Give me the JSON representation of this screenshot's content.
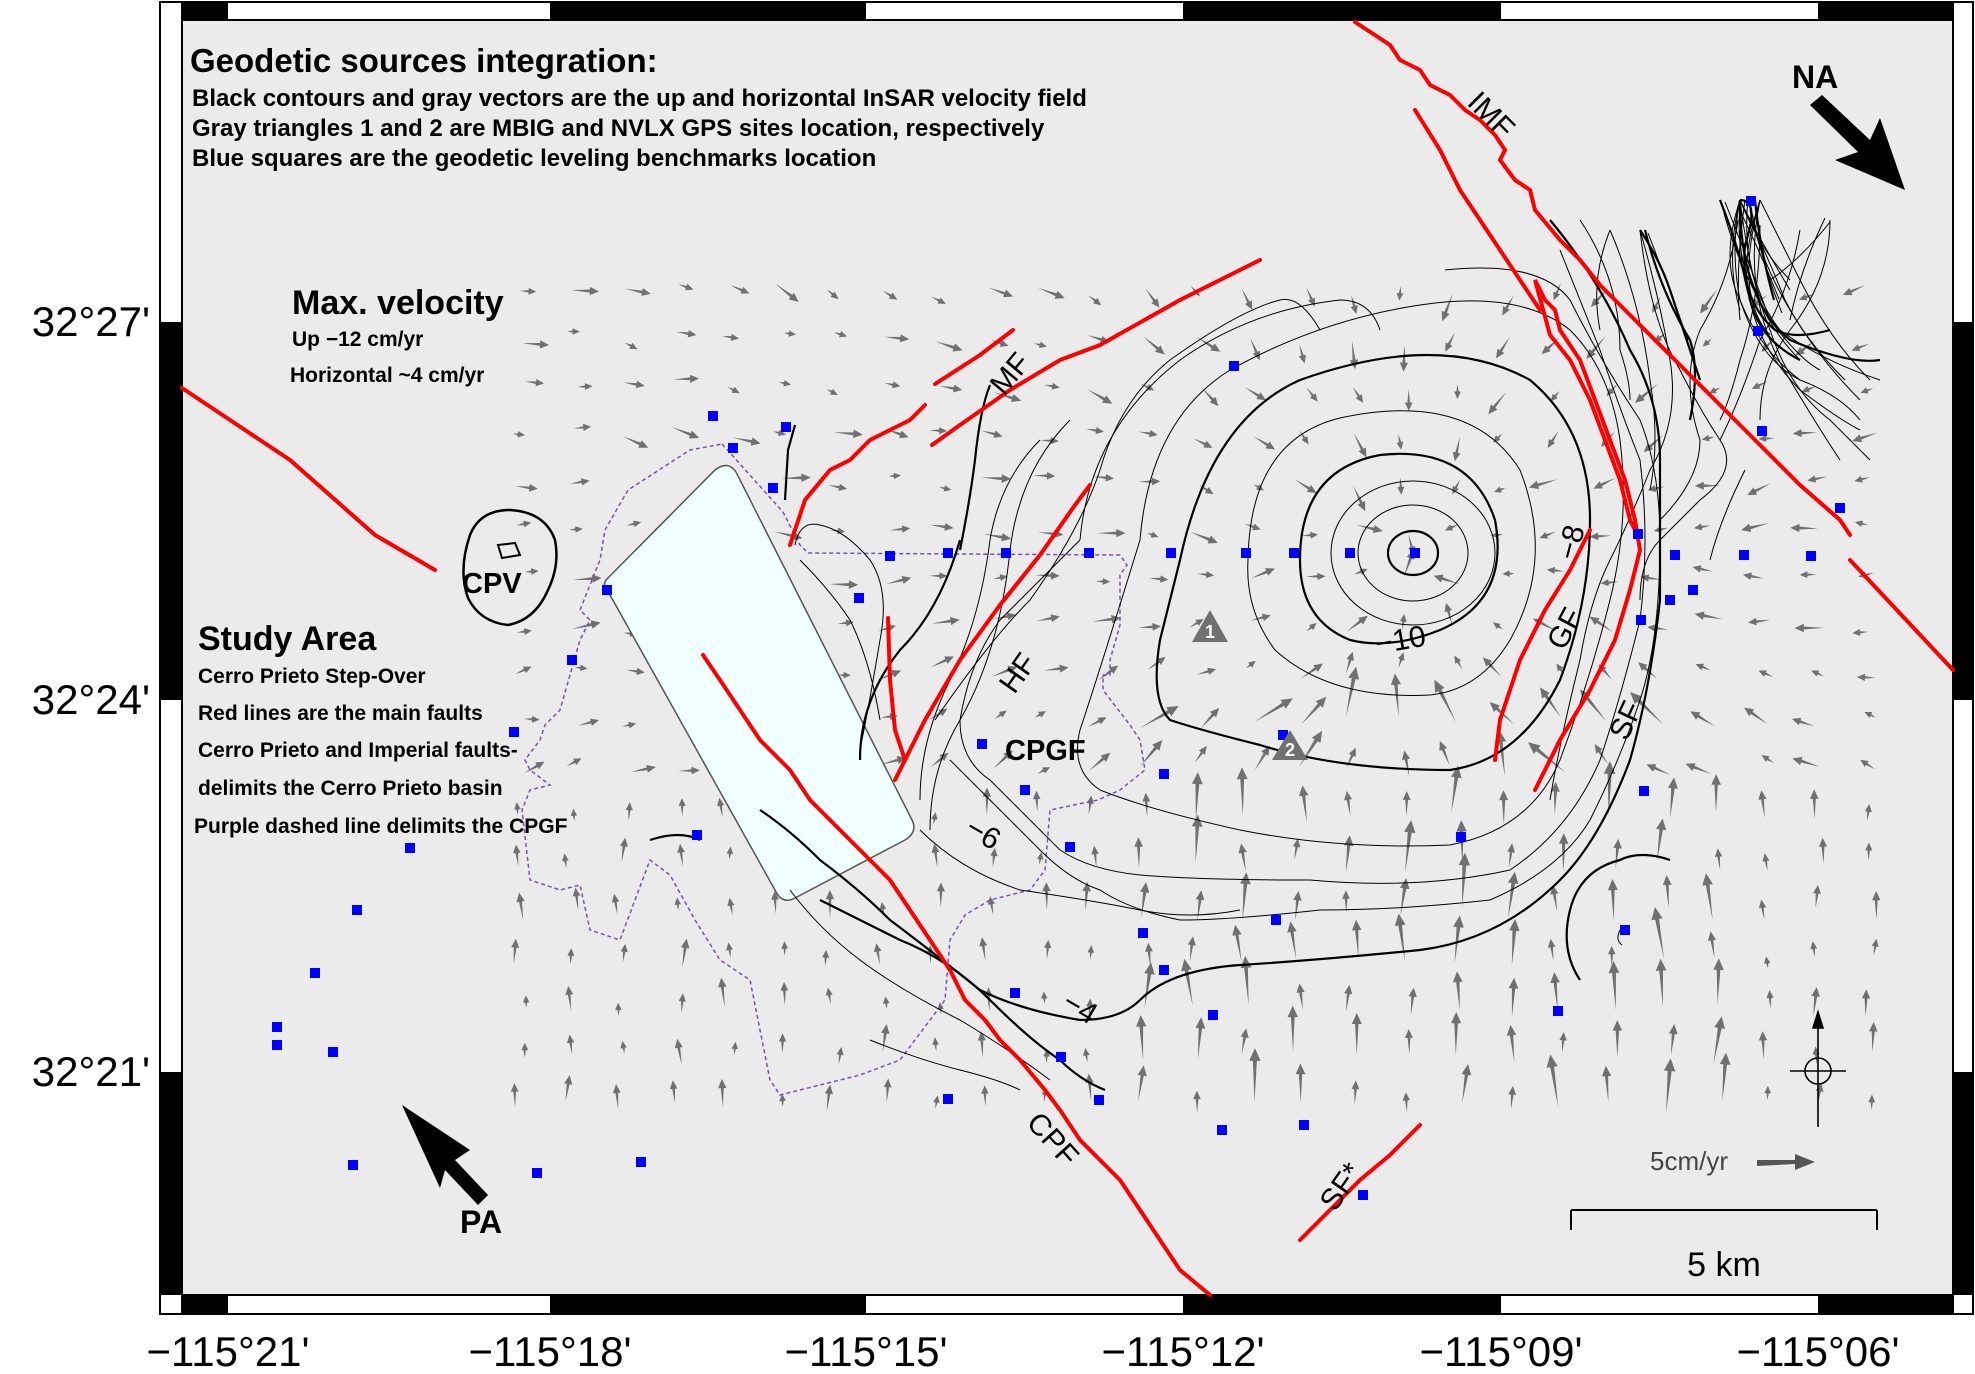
{
  "map": {
    "axes": {
      "x_ticks": [
        "−115°21'",
        "−115°18'",
        "−115°15'",
        "−115°12'",
        "−115°09'",
        "−115°06'"
      ],
      "y_ticks": [
        "32°27'",
        "32°24'",
        "32°21'"
      ]
    },
    "colors": {
      "background": "#ebebeb",
      "faults": "#ff0000",
      "benchmarks": "#0000ff",
      "vectors": "#707070",
      "cpgf_boundary": "#7a4fb0",
      "pond": "#f0ffff"
    },
    "title_block": {
      "title": "Geodetic sources integration:",
      "lines": [
        "Black contours and gray vectors are the up and horizontal InSAR velocity field",
        "Gray triangles 1 and 2 are MBIG and NVLX GPS sites location, respectively",
        "Blue squares are the geodetic leveling benchmarks location"
      ]
    },
    "max_velocity": {
      "title": "Max. velocity",
      "up": "Up −12 cm/yr",
      "horizontal": "Horizontal ~4 cm/yr"
    },
    "study_area": {
      "title": "Study Area",
      "lines": [
        "Cerro Prieto Step-Over",
        "Red lines are the main faults",
        "Cerro Prieto and Imperial faults-",
        "delimits the Cerro Prieto basin",
        "Purple dashed line delimits the CPGF"
      ]
    },
    "fault_labels": [
      "IMF",
      "MF",
      "HF",
      "GF",
      "SF",
      "CPF",
      "SF*"
    ],
    "place_labels": {
      "cpv": "CPV",
      "cpgf": "CPGF"
    },
    "plate_labels": {
      "na": "NA",
      "pa": "PA"
    },
    "contour_labels": [
      "−10",
      "−8",
      "−6",
      "−4"
    ],
    "gps_sites": [
      "1",
      "2"
    ],
    "vector_scale": "5cm/yr",
    "scale_bar": "5 km"
  }
}
